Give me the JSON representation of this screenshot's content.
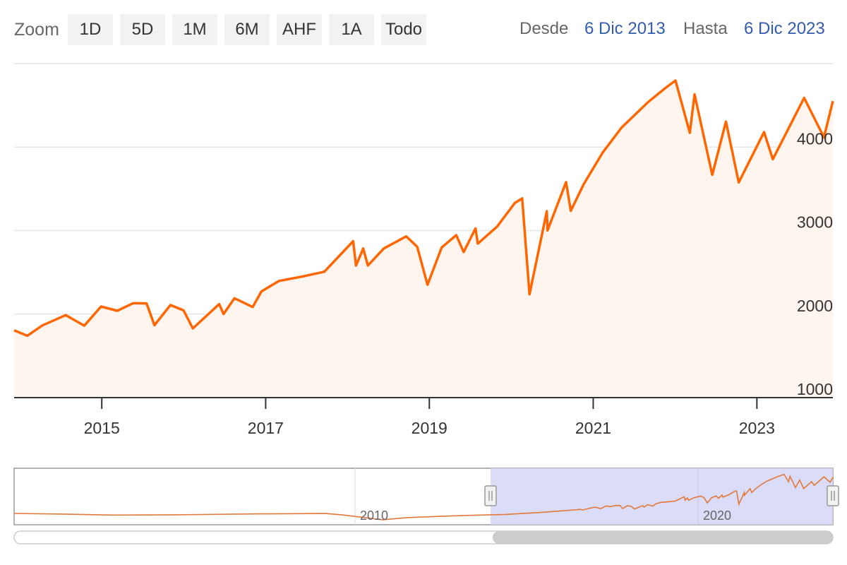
{
  "toolbar": {
    "zoom_label": "Zoom",
    "buttons": [
      "1D",
      "5D",
      "1M",
      "6M",
      "AHF",
      "1A",
      "Todo"
    ],
    "from_label": "Desde",
    "from_date": "6 Dic 2013",
    "to_label": "Hasta",
    "to_date": "6 Dic 2023"
  },
  "colors": {
    "series": "#ff6600",
    "area": "#fff5ef",
    "navigator_mask": "#d5d6f7",
    "date_link": "#335cad"
  },
  "chart_data": {
    "type": "area",
    "title": "",
    "xlabel": "",
    "ylabel": "",
    "x_ticks": [
      "2015",
      "2017",
      "2019",
      "2021",
      "2023"
    ],
    "y_ticks": [
      "1000",
      "2000",
      "3000",
      "4000"
    ],
    "xlim": [
      "2013-12-06",
      "2023-12-06"
    ],
    "ylim": [
      1000,
      5000
    ],
    "grid": true,
    "series": [
      {
        "x": [
          "2013-12-06",
          "2014-02-03",
          "2014-04-11",
          "2014-07-24",
          "2014-10-15",
          "2014-12-29",
          "2015-03-11",
          "2015-05-21",
          "2015-07-20",
          "2015-08-24",
          "2015-11-03",
          "2016-01-01",
          "2016-02-11",
          "2016-06-08",
          "2016-06-27",
          "2016-08-15",
          "2016-11-04",
          "2016-12-13",
          "2017-03-01",
          "2017-06-19",
          "2017-09-20",
          "2018-01-26",
          "2018-02-08",
          "2018-03-12",
          "2018-04-02",
          "2018-06-12",
          "2018-09-20",
          "2018-11-08",
          "2018-12-24",
          "2019-02-25",
          "2019-05-01",
          "2019-06-03",
          "2019-07-26",
          "2019-08-05",
          "2019-10-30",
          "2020-01-17",
          "2020-02-19",
          "2020-03-23",
          "2020-06-08",
          "2020-06-11",
          "2020-09-02",
          "2020-09-23",
          "2020-11-20",
          "2021-02-12",
          "2021-05-07",
          "2021-09-02",
          "2021-11-18",
          "2022-01-03",
          "2022-03-08",
          "2022-03-29",
          "2022-06-16",
          "2022-08-16",
          "2022-10-12",
          "2023-02-02",
          "2023-03-13",
          "2023-07-31",
          "2023-10-27",
          "2023-12-06"
        ],
        "values": [
          1805,
          1741,
          1864,
          1988,
          1862,
          2091,
          2040,
          2131,
          2128,
          1867,
          2109,
          2044,
          1829,
          2120,
          2001,
          2190,
          2085,
          2272,
          2396,
          2453,
          2508,
          2873,
          2581,
          2786,
          2582,
          2786,
          2931,
          2806,
          2351,
          2797,
          2946,
          2744,
          3026,
          2844,
          3047,
          3330,
          3386,
          2237,
          3232,
          3002,
          3580,
          3237,
          3557,
          3934,
          4232,
          4537,
          4705,
          4797,
          4170,
          4631,
          3667,
          4305,
          3577,
          4179,
          3855,
          4589,
          4117,
          4550
        ]
      }
    ]
  },
  "navigator": {
    "labels": [
      "2010",
      "2020"
    ]
  }
}
